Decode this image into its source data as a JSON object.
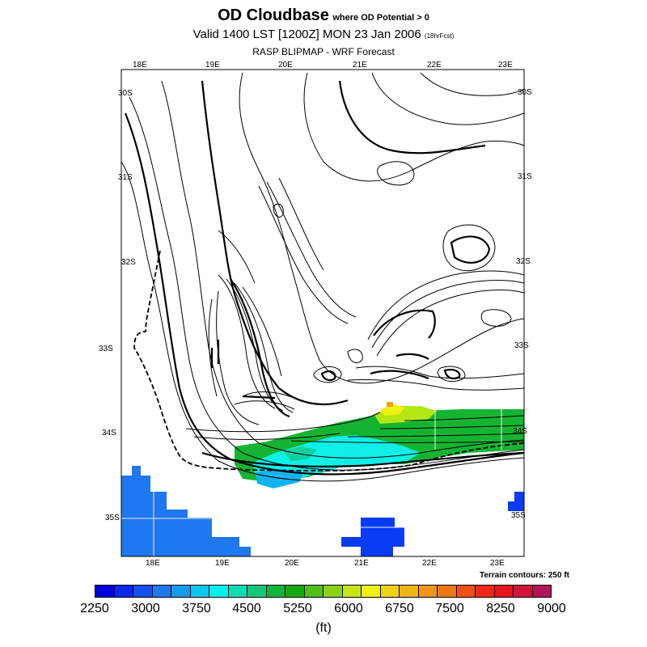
{
  "title": {
    "main": "OD Cloudbase",
    "qualifier": "where OD Potential > 0",
    "valid": "Valid 1400 LST [1200Z] MON 23 Jan 2006",
    "forecast_hours": "(18hrFcst)",
    "subtitle": "RASP BLIPMAP - WRF Forecast"
  },
  "map": {
    "lon_labels_top": [
      "18E",
      "19E",
      "20E",
      "21E",
      "22E",
      "23E"
    ],
    "lon_labels_bottom": [
      "18E",
      "19E",
      "20E",
      "21E",
      "22E",
      "23E"
    ],
    "lat_labels_left": [
      "30S",
      "31S",
      "32S",
      "33S",
      "34S",
      "35S"
    ],
    "lat_labels_right": [
      "30S",
      "31S",
      "32S",
      "33S",
      "34S",
      "35S"
    ],
    "terrain_note": "Terrain contours: 250 ft",
    "colors": {
      "blue": "#0a3cf5",
      "mid_blue": "#1e78f0",
      "light_blue": "#10b4f0",
      "cyan": "#0ef0e6",
      "teal": "#10d2a0",
      "green": "#14b432",
      "yellow_green": "#b4e614",
      "yellow": "#f0f014",
      "orange": "#f0a014"
    }
  },
  "legend": {
    "colors": [
      "#0000e0",
      "#0a28f0",
      "#1450f0",
      "#1e78f0",
      "#149cf0",
      "#0ac8f0",
      "#00f0f0",
      "#10dcb4",
      "#10c878",
      "#10b43c",
      "#14aa14",
      "#50be14",
      "#8cd214",
      "#c8e614",
      "#f0f014",
      "#f0d214",
      "#f0b414",
      "#f09614",
      "#f07814",
      "#f05014",
      "#f02814",
      "#e6141e",
      "#d2143c",
      "#b4145a"
    ],
    "labels": [
      "2250",
      "3000",
      "3750",
      "4500",
      "5250",
      "6000",
      "6750",
      "7500",
      "8250",
      "9000"
    ],
    "units": "(ft)"
  }
}
